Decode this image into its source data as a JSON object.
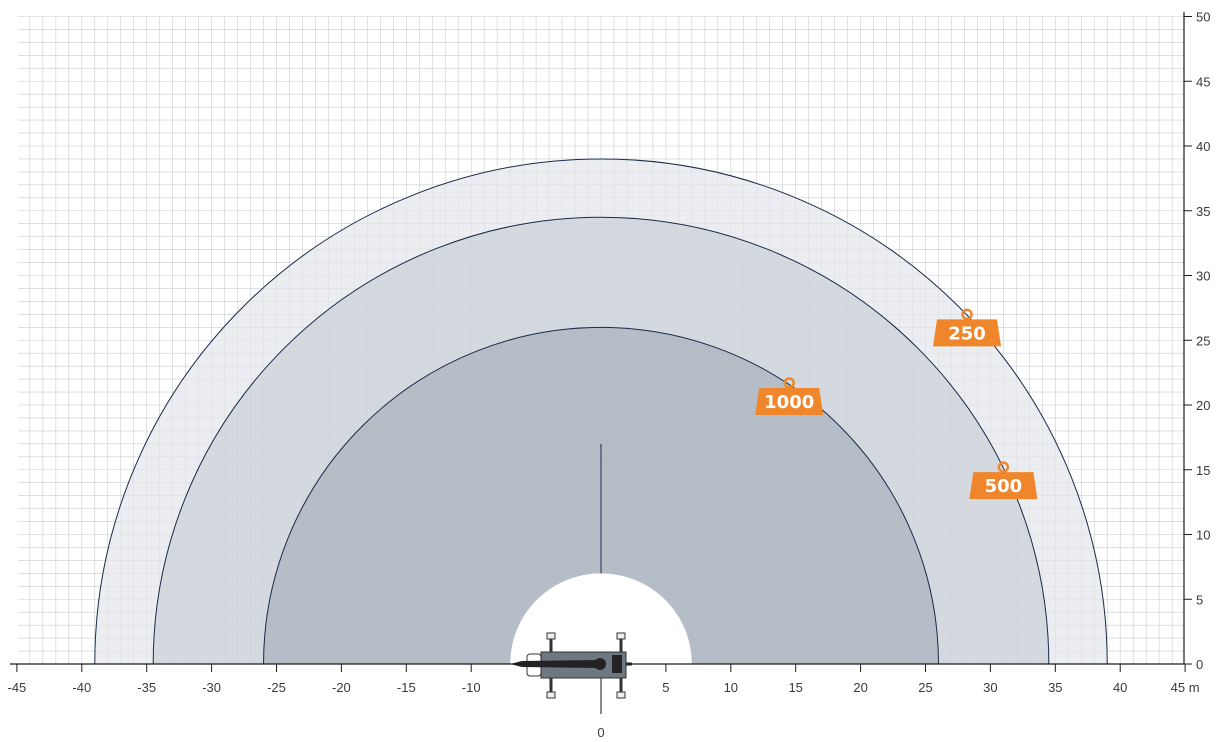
{
  "chart_data": {
    "type": "area",
    "title": "",
    "xlabel": "",
    "ylabel": "",
    "x_unit": "m",
    "xlim": [
      -45,
      45
    ],
    "ylim": [
      0,
      50
    ],
    "x_ticks": [
      -45,
      -40,
      -35,
      -30,
      -25,
      -20,
      -15,
      -10,
      5,
      10,
      15,
      20,
      25,
      30,
      35,
      40,
      45
    ],
    "y_ticks": [
      0,
      5,
      10,
      15,
      20,
      25,
      30,
      35,
      40,
      45,
      50
    ],
    "origin_label": "0",
    "grid": "on",
    "grid_minor_step": 1,
    "series": [
      {
        "radius": 39.0,
        "fill": "#e3e6ea"
      },
      {
        "radius": 34.5,
        "fill": "#cbd1d8"
      },
      {
        "radius": 26.0,
        "fill": "#a9b2be"
      }
    ],
    "inner_exclusion_radius": 7.0,
    "center_line_top": 17,
    "load_badges": [
      {
        "label": "250",
        "x": 28.2,
        "y": 27.0,
        "color": "#f0862b"
      },
      {
        "label": "1000",
        "x": 14.5,
        "y": 21.7,
        "color": "#f0862b"
      },
      {
        "label": "500",
        "x": 31.0,
        "y": 15.2,
        "color": "#f0862b"
      }
    ],
    "line_color": "#1a2a4a"
  }
}
